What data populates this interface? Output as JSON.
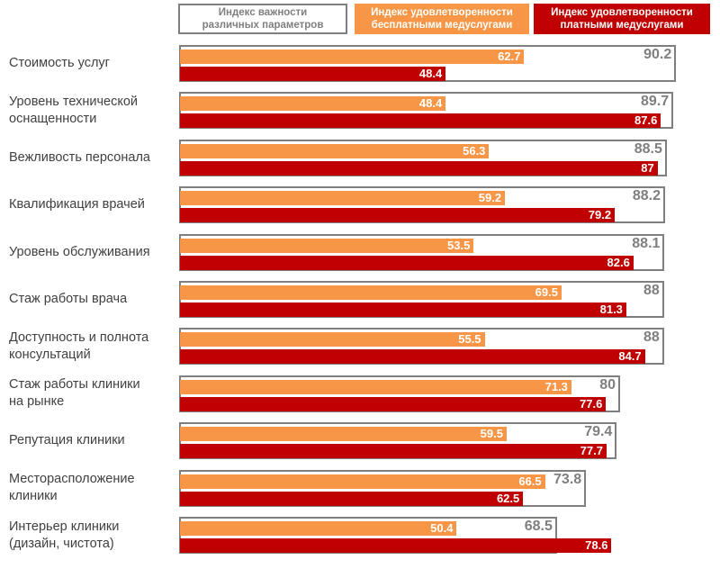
{
  "legend": {
    "importance": [
      "Индекс важности",
      "различных параметров"
    ],
    "free": [
      "Индекс удовлетворенности",
      "бесплатными  медуслугами"
    ],
    "paid": [
      "Индекс удовлетворенности",
      "платными медуслугами"
    ]
  },
  "chart_data": {
    "type": "bar",
    "orientation": "horizontal",
    "categories": [
      [
        "Стоимость услуг"
      ],
      [
        "Уровень технической",
        "оснащенности"
      ],
      [
        "Вежливость персонала"
      ],
      [
        "Квалификация врачей"
      ],
      [
        "Уровень обслуживания"
      ],
      [
        "Стаж работы врача"
      ],
      [
        "Доступность и полнота",
        "консультаций"
      ],
      [
        "Стаж работы клиники",
        "на рынке"
      ],
      [
        "Репутация клиники"
      ],
      [
        "Месторасположение",
        "клиники"
      ],
      [
        "Интерьер клиники",
        "(дизайн, чистота)"
      ]
    ],
    "series": [
      {
        "name": "Индекс важности различных параметров",
        "color": "#7f7f7f",
        "values": [
          90.2,
          89.7,
          88.5,
          88.2,
          88.1,
          88,
          88,
          80,
          79.4,
          73.8,
          68.5
        ],
        "labels": [
          "90.2",
          "89.7",
          "88.5",
          "88.2",
          "88.1",
          "88",
          "88",
          "80",
          "79.4",
          "73.8",
          "68.5"
        ]
      },
      {
        "name": "Индекс удовлетворенности бесплатными медуслугами",
        "color": "#f79646",
        "values": [
          62.7,
          48.4,
          56.3,
          59.2,
          53.5,
          69.5,
          55.5,
          71.3,
          59.5,
          66.5,
          50.4
        ],
        "labels": [
          "62.7",
          "48.4",
          "56.3",
          "59.2",
          "53.5",
          "69.5",
          "55.5",
          "71.3",
          "59.5",
          "66.5",
          "50.4"
        ]
      },
      {
        "name": "Индекс удовлетворенности платными медуслугами",
        "color": "#c00000",
        "values": [
          48.4,
          87.6,
          87,
          79.2,
          82.6,
          81.3,
          84.7,
          77.6,
          77.7,
          62.5,
          78.6
        ],
        "labels": [
          "48.4",
          "87.6",
          "87",
          "79.2",
          "82.6",
          "81.3",
          "84.7",
          "77.6",
          "77.7",
          "62.5",
          "78.6"
        ]
      }
    ],
    "xlim": [
      0,
      100
    ],
    "grid": false,
    "legend": "top"
  }
}
